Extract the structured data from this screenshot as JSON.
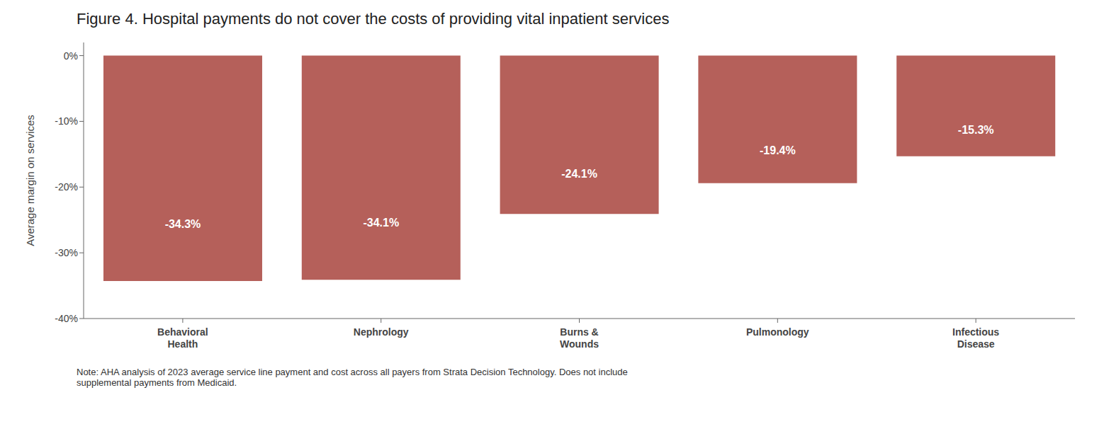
{
  "chart_data": {
    "type": "bar",
    "title": "Figure 4. Hospital payments do not cover the costs of providing vital inpatient services",
    "categories": [
      "Behavioral\nHealth",
      "Nephrology",
      "Burns &\nWounds",
      "Pulmonology",
      "Infectious\nDisease"
    ],
    "values": [
      -34.3,
      -34.1,
      -24.1,
      -19.4,
      -15.3
    ],
    "value_labels": [
      "-34.3%",
      "-34.1%",
      "-24.1%",
      "-19.4%",
      "-15.3%"
    ],
    "data_labels": true,
    "color": "#b5605a",
    "ylim": [
      -40,
      2
    ],
    "yticks": [
      {
        "value": 0,
        "label": "0%"
      },
      {
        "value": -10,
        "label": "-10%"
      },
      {
        "value": -20,
        "label": "-20%"
      },
      {
        "value": -30,
        "label": "-30%"
      },
      {
        "value": -40,
        "label": "-40%"
      }
    ],
    "ylabel": "Average margin on services",
    "grid": false,
    "annotations": [
      "Note: AHA analysis of 2023 average service line payment and cost across all payers from Strata Decision Technology. Does not include\nsupplemental payments from Medicaid."
    ]
  }
}
